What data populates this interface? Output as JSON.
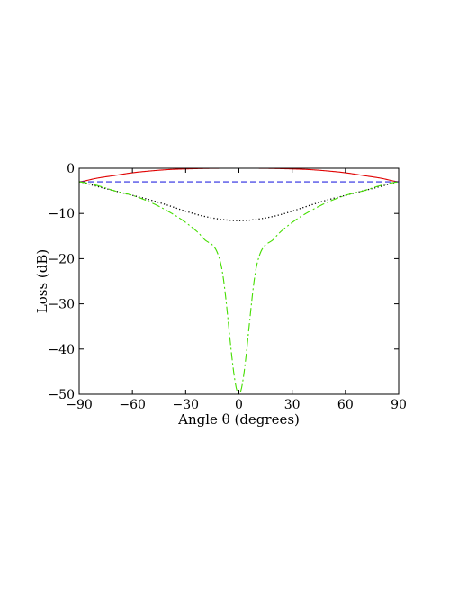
{
  "chart_data": {
    "type": "line",
    "xlabel": "Angle θ (degrees)",
    "ylabel": "Loss (dB)",
    "xlim": [
      -90,
      90
    ],
    "ylim": [
      -50,
      0
    ],
    "xticks": [
      -90,
      -60,
      -30,
      0,
      30,
      60,
      90
    ],
    "yticks": [
      0,
      -10,
      -20,
      -30,
      -40,
      -50
    ],
    "xtick_labels": [
      "−90",
      "−60",
      "−30",
      "0",
      "30",
      "60",
      "90"
    ],
    "ytick_labels": [
      "0",
      "−10",
      "−20",
      "−30",
      "−40",
      "−50"
    ],
    "grid": false,
    "x": [
      -90,
      -80,
      -70,
      -60,
      -50,
      -40,
      -30,
      -20,
      -10,
      0,
      10,
      20,
      30,
      40,
      50,
      60,
      70,
      80,
      90
    ],
    "series": [
      {
        "color": "#e00000",
        "style": "solid",
        "values": [
          -3.0,
          -2.2,
          -1.6,
          -1.0,
          -0.6,
          -0.3,
          -0.15,
          -0.05,
          0.0,
          0.0,
          0.0,
          -0.05,
          -0.15,
          -0.3,
          -0.6,
          -1.0,
          -1.6,
          -2.2,
          -3.0
        ]
      },
      {
        "color": "#2a2ae0",
        "style": "dashed",
        "values": [
          -3.0,
          -3.0,
          -3.0,
          -3.0,
          -3.0,
          -3.0,
          -3.0,
          -3.0,
          -3.0,
          -3.0,
          -3.0,
          -3.0,
          -3.0,
          -3.0,
          -3.0,
          -3.0,
          -3.0,
          -3.0,
          -3.0
        ]
      },
      {
        "color": "#000000",
        "style": "dotted",
        "values": [
          -3.0,
          -4.0,
          -5.0,
          -6.0,
          -7.0,
          -8.2,
          -9.5,
          -10.6,
          -11.3,
          -11.6,
          -11.3,
          -10.6,
          -9.5,
          -8.2,
          -7.0,
          -6.0,
          -5.0,
          -4.0,
          -3.0
        ]
      },
      {
        "color": "#44dd00",
        "style": "dashdot",
        "values": [
          -3.0,
          -3.8,
          -5.0,
          -6.0,
          -7.5,
          -9.5,
          -12.0,
          -15.5,
          -21.5,
          -50.0,
          -21.5,
          -15.5,
          -12.0,
          -9.5,
          -7.5,
          -6.0,
          -5.0,
          -3.8,
          -3.0
        ]
      }
    ]
  }
}
